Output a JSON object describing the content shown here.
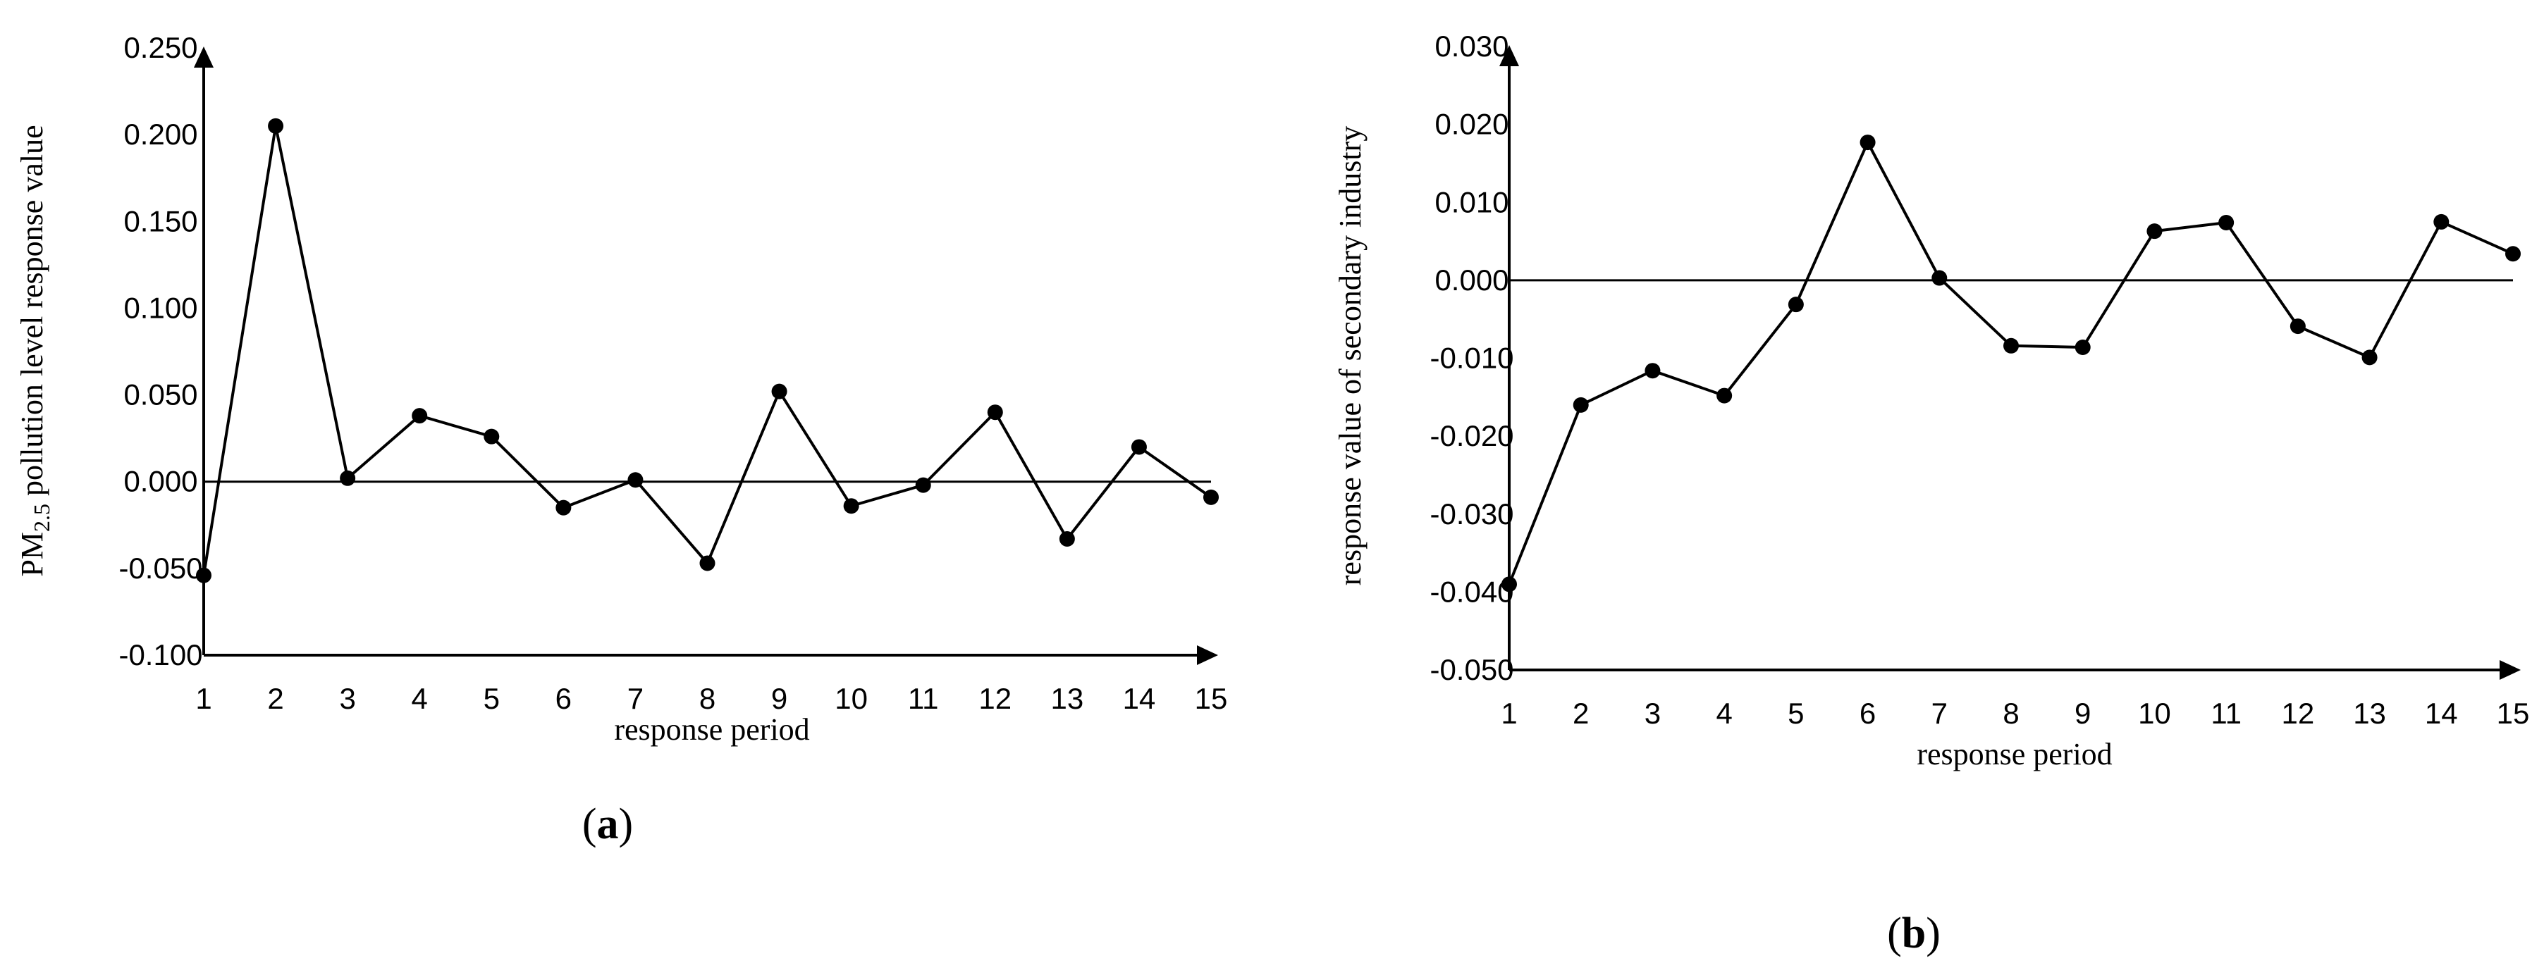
{
  "chart_data": [
    {
      "id": "a",
      "type": "line",
      "caption": "a",
      "x": [
        1,
        2,
        3,
        4,
        5,
        6,
        7,
        8,
        9,
        10,
        11,
        12,
        13,
        14,
        15
      ],
      "series": [
        {
          "values": [
            -0.054,
            0.205,
            0.002,
            0.038,
            0.026,
            -0.015,
            0.001,
            -0.047,
            0.052,
            -0.014,
            -0.002,
            0.04,
            -0.033,
            0.02,
            -0.009
          ]
        }
      ],
      "xlabel": "response period",
      "ylabel_main": "PM",
      "ylabel_sub": "2.5",
      "ylabel_rest": " pollution level response value",
      "ylim": [
        -0.1,
        0.25
      ],
      "yticks": [
        "0.250",
        "0.200",
        "0.150",
        "0.100",
        "0.050",
        "0.000",
        "-0.050",
        "-0.100"
      ],
      "xticks": [
        "1",
        "2",
        "3",
        "4",
        "5",
        "6",
        "7",
        "8",
        "9",
        "10",
        "11",
        "12",
        "13",
        "14",
        "15"
      ],
      "zero_line": true,
      "grid": false,
      "legend": "none"
    },
    {
      "id": "b",
      "type": "line",
      "caption": "b",
      "x": [
        1,
        2,
        3,
        4,
        5,
        6,
        7,
        8,
        9,
        10,
        11,
        12,
        13,
        14,
        15
      ],
      "series": [
        {
          "values": [
            -0.039,
            -0.016,
            -0.0116,
            -0.0148,
            -0.0031,
            0.0177,
            0.0003,
            -0.0084,
            -0.0086,
            0.0063,
            0.0074,
            -0.0059,
            -0.0099,
            0.0075,
            0.0034
          ]
        }
      ],
      "xlabel": "response period",
      "ylabel": "response value of secondary industry",
      "ylim": [
        -0.05,
        0.03
      ],
      "yticks": [
        "0.030",
        "0.020",
        "0.010",
        "0.000",
        "-0.010",
        "-0.020",
        "-0.030",
        "-0.040",
        "-0.050"
      ],
      "xticks": [
        "1",
        "2",
        "3",
        "4",
        "5",
        "6",
        "7",
        "8",
        "9",
        "10",
        "11",
        "12",
        "13",
        "14",
        "15"
      ],
      "zero_line": true,
      "grid": false,
      "legend": "none"
    }
  ]
}
